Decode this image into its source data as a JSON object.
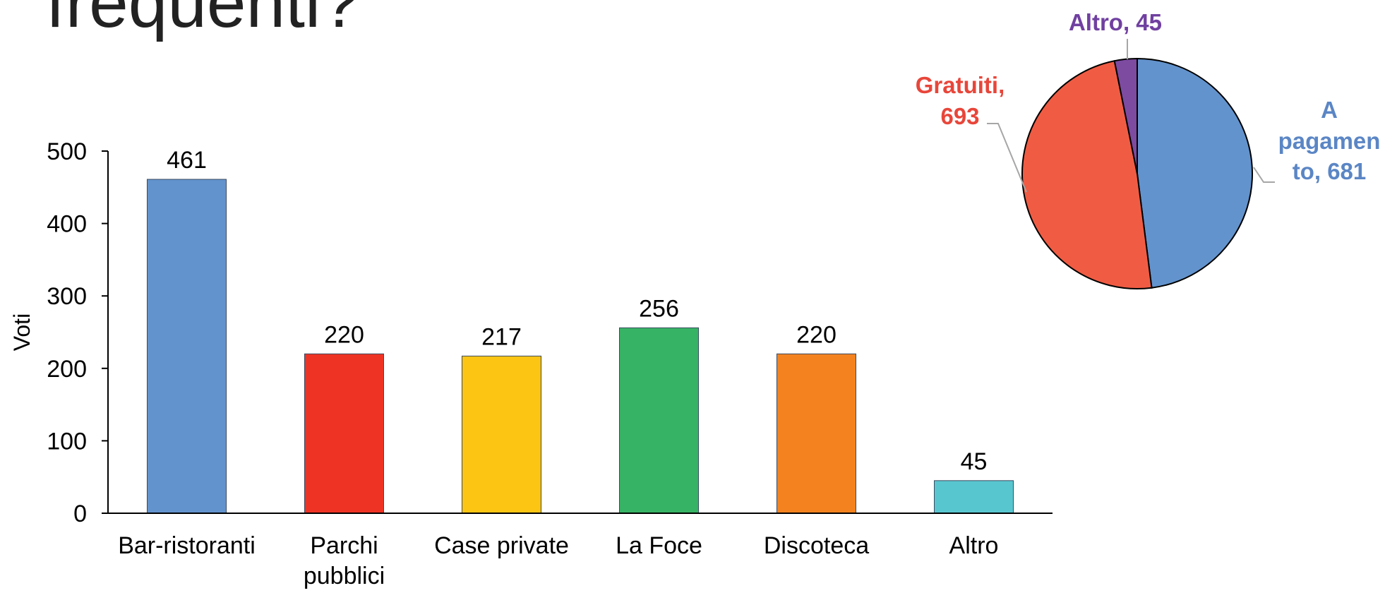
{
  "header": {
    "title": "frequenti?"
  },
  "chart_data": [
    {
      "type": "bar",
      "ylabel": "Voti",
      "categories": [
        "Bar-ristoranti",
        "Parchi pubblici",
        "Case private",
        "La Foce",
        "Discoteca",
        "Altro"
      ],
      "values": [
        461,
        220,
        217,
        256,
        220,
        45
      ],
      "colors": [
        "#6393cd",
        "#ee3324",
        "#fdc513",
        "#37b365",
        "#f3821f",
        "#58c6cf"
      ],
      "ylim": [
        0,
        500
      ],
      "yticks": [
        0,
        100,
        200,
        300,
        400,
        500
      ],
      "grid": false
    },
    {
      "type": "pie",
      "categories": [
        "A pagamento",
        "Gratuiti",
        "Altro"
      ],
      "values": [
        681,
        693,
        45
      ],
      "value_labels": [
        "A pagamento, 681",
        "Gratuiti, 693",
        "Altro, 45"
      ],
      "colors": [
        "#6393cd",
        "#f05c43",
        "#7d4ba0"
      ],
      "label_colors": [
        "#5b86c5",
        "#e8463a",
        "#7040a0"
      ]
    }
  ]
}
